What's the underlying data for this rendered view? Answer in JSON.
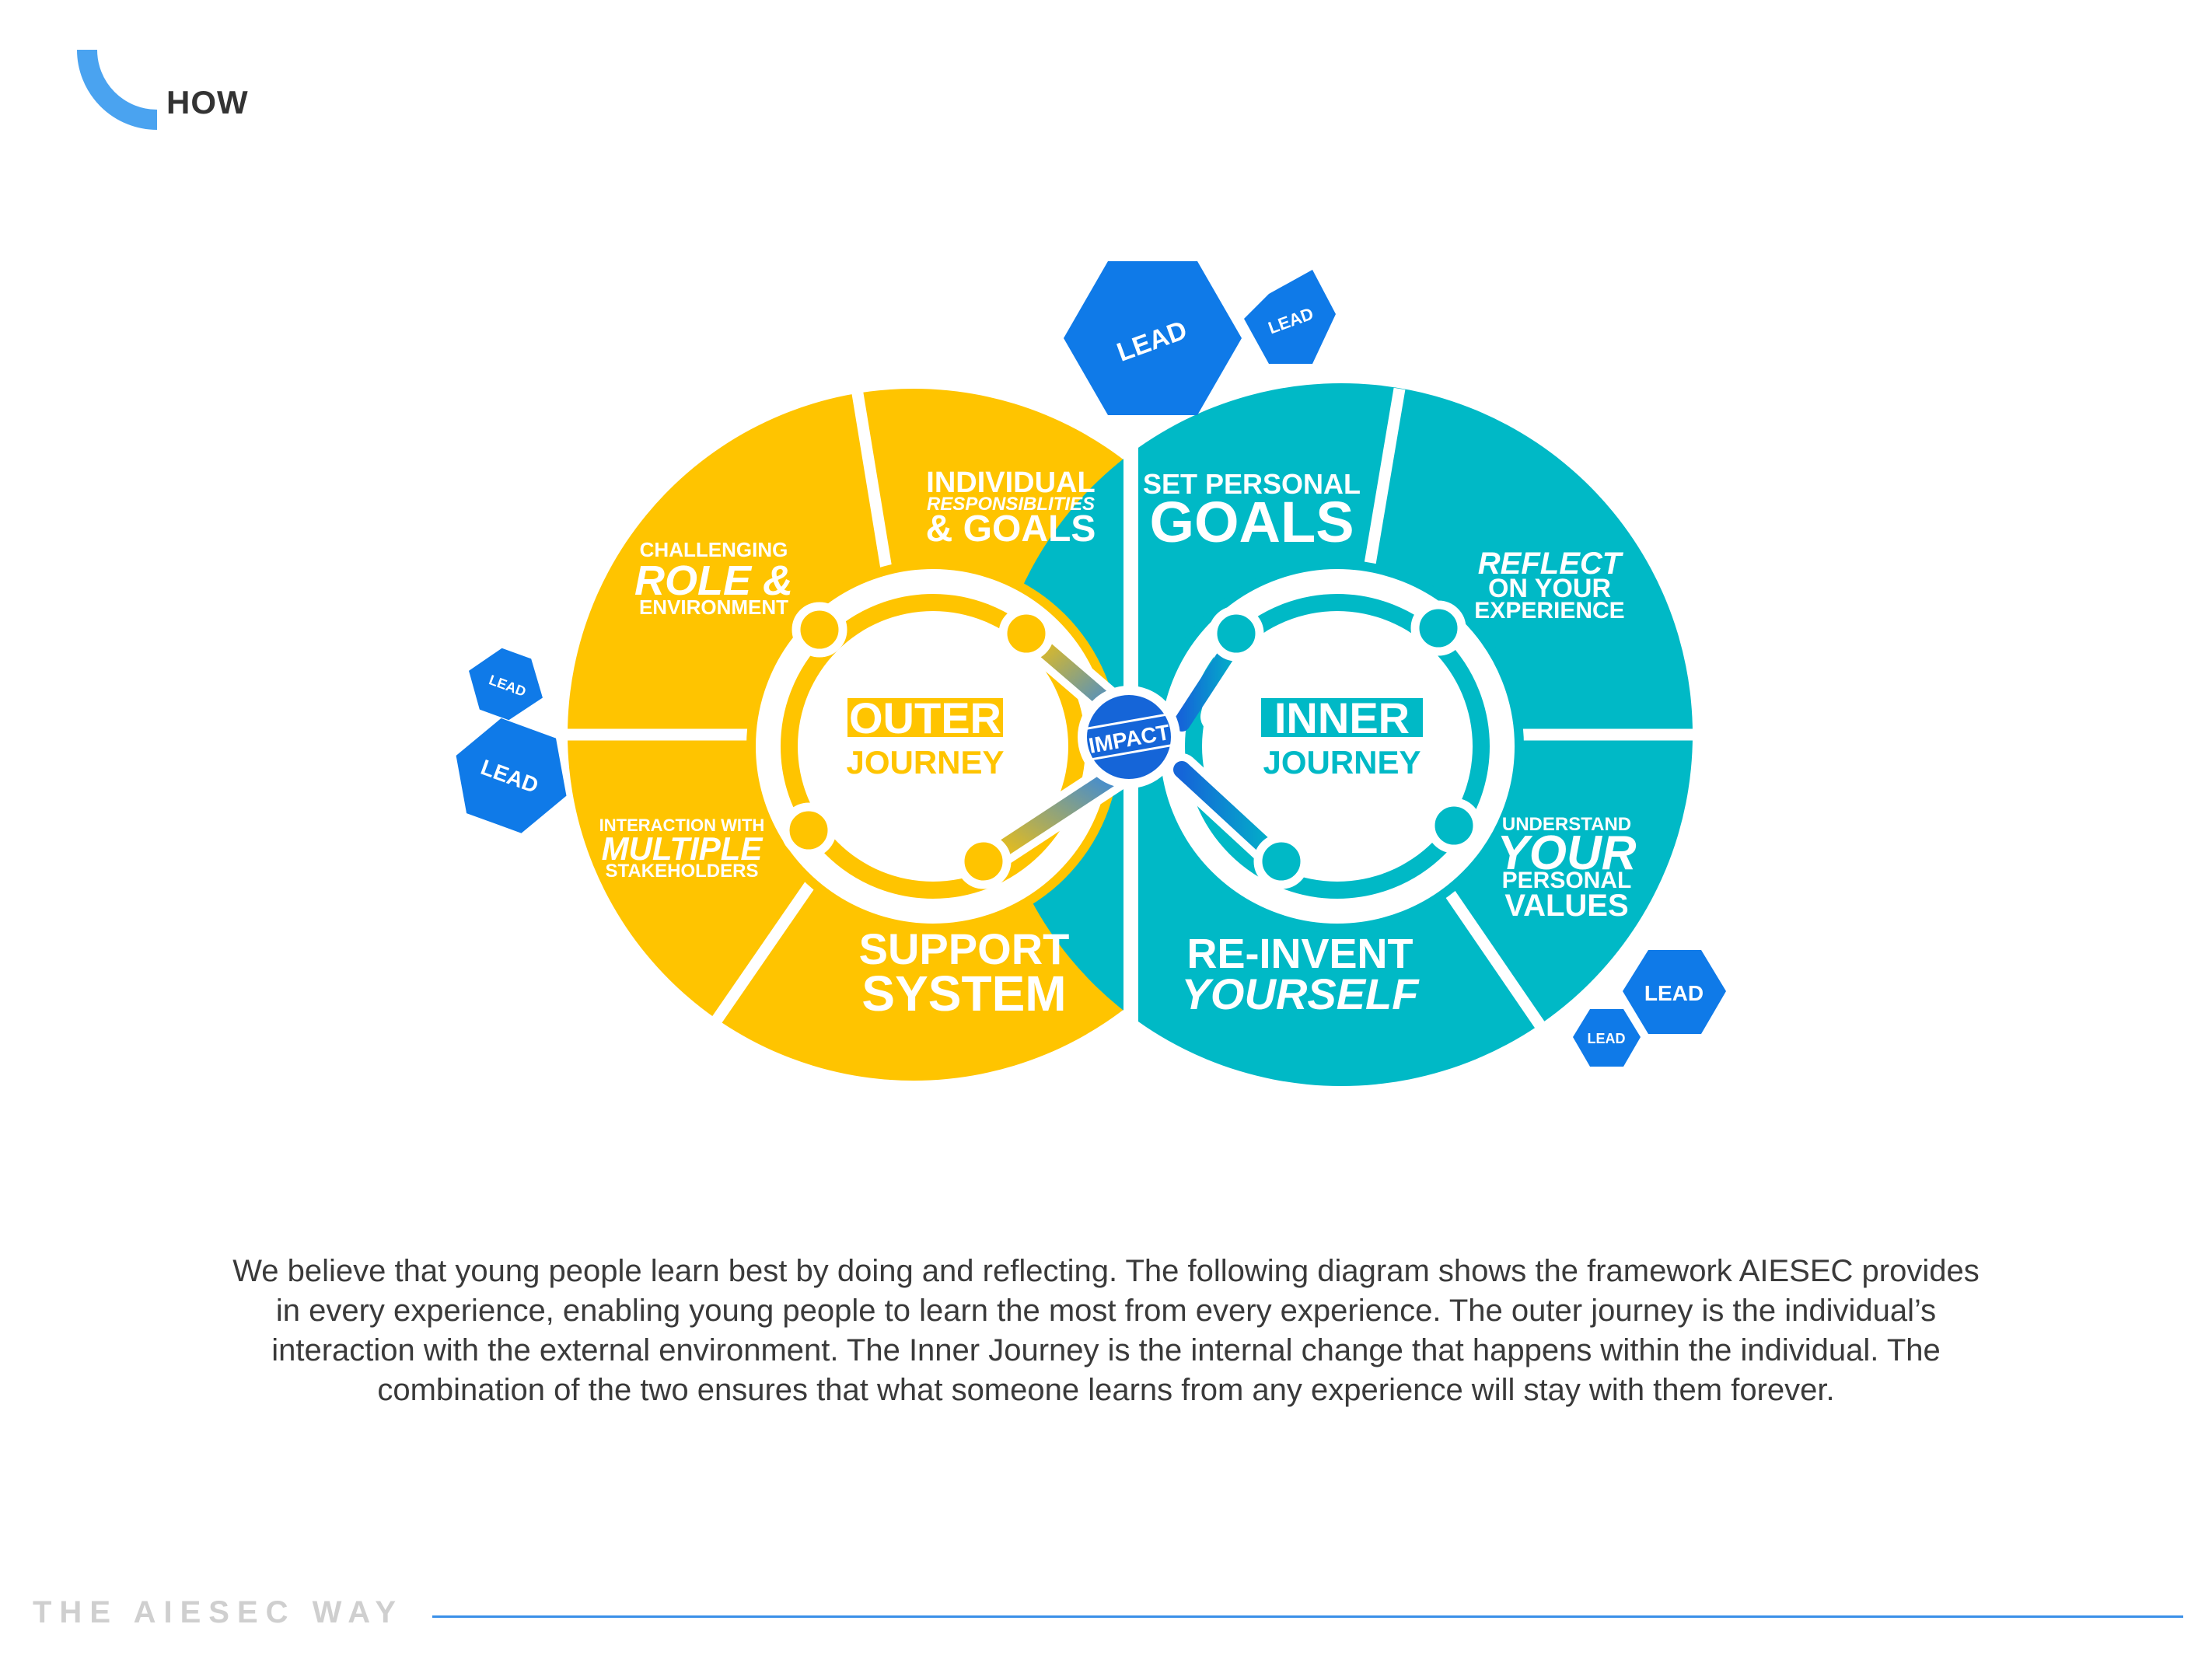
{
  "header": {
    "title": "HOW"
  },
  "colors": {
    "outer": "#FFC400",
    "inner": "#00B9C6",
    "lead": "#0F7AE8",
    "impact": "#1565D8",
    "accent_arc": "#4AA3F0",
    "footer_rule": "#3A8FE8"
  },
  "diagram": {
    "outer": {
      "title_top": "OUTER",
      "title_bottom": "JOURNEY",
      "segments": [
        {
          "id": "individual",
          "lines": [
            "INDIVIDUAL",
            "RESPONSIBLITIES",
            "& GOALS"
          ]
        },
        {
          "id": "challenging",
          "lines": [
            "CHALLENGING",
            "ROLE &",
            "ENVIRONMENT"
          ]
        },
        {
          "id": "interaction",
          "lines": [
            "INTERACTION WITH",
            "MULTIPLE",
            "STAKEHOLDERS"
          ]
        },
        {
          "id": "support",
          "lines": [
            "SUPPORT",
            "SYSTEM"
          ]
        }
      ]
    },
    "inner": {
      "title_top": "INNER",
      "title_bottom": "JOURNEY",
      "segments": [
        {
          "id": "goals",
          "lines": [
            "SET PERSONAL",
            "GOALS"
          ]
        },
        {
          "id": "reflect",
          "lines": [
            "REFLECT",
            "ON YOUR",
            "EXPERIENCE"
          ]
        },
        {
          "id": "values",
          "lines": [
            "UNDERSTAND",
            "YOUR",
            "PERSONAL",
            "VALUES"
          ]
        },
        {
          "id": "reinvent",
          "lines": [
            "RE-INVENT",
            "YOURSELF"
          ]
        }
      ]
    },
    "center": {
      "label": "IMPACT"
    },
    "lead_label": "LEAD"
  },
  "description": "We believe that young people learn best by doing and reflecting. The following diagram shows the framework AIESEC provides in every experience, enabling young people to learn the most from every experience. The outer journey is the individual’s interaction with the external environment. The Inner Journey is the internal change that happens within the individual. The combination of the two ensures that what someone learns from any experience will stay with them forever.",
  "footer": {
    "brand": "THE AIESEC WAY"
  }
}
